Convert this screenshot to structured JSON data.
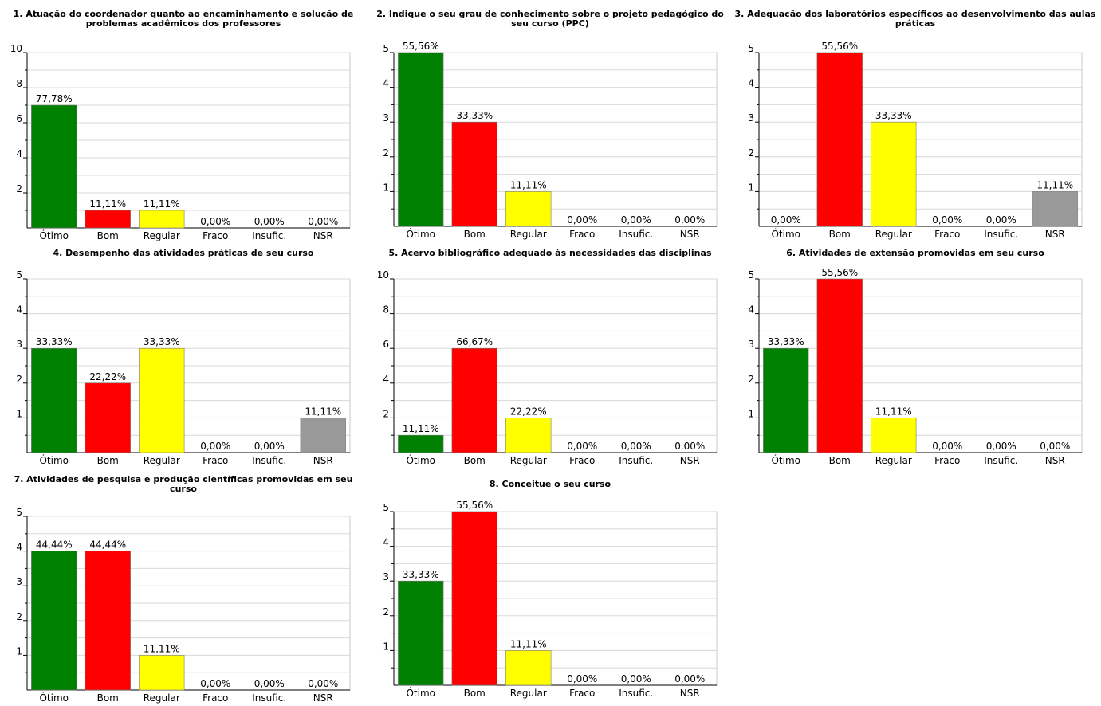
{
  "chart_data": [
    {
      "type": "bar",
      "title": "1. Atuação do coordenador quanto ao encaminhamento e solução de problemas acadêmicos dos professores",
      "categories": [
        "Ótimo",
        "Bom",
        "Regular",
        "Fraco",
        "Insufic.",
        "NSR"
      ],
      "values": [
        7,
        1,
        1,
        0,
        0,
        0
      ],
      "data_labels": [
        "77,78%",
        "11,11%",
        "11,11%",
        "0,00%",
        "0,00%",
        "0,00%"
      ],
      "colors": [
        "#008000",
        "#ff0000",
        "#ffff00",
        "#ffffff",
        "#ffffff",
        "#999999"
      ],
      "ylim": [
        0,
        10
      ],
      "yticks": [
        2,
        4,
        6,
        8,
        10
      ],
      "grid": true
    },
    {
      "type": "bar",
      "title": "2. Indique o seu grau de conhecimento sobre o projeto pedagógico do seu curso (PPC)",
      "categories": [
        "Ótimo",
        "Bom",
        "Regular",
        "Fraco",
        "Insufic.",
        "NSR"
      ],
      "values": [
        5,
        3,
        1,
        0,
        0,
        0
      ],
      "data_labels": [
        "55,56%",
        "33,33%",
        "11,11%",
        "0,00%",
        "0,00%",
        "0,00%"
      ],
      "colors": [
        "#008000",
        "#ff0000",
        "#ffff00",
        "#ffffff",
        "#ffffff",
        "#999999"
      ],
      "ylim": [
        0,
        5
      ],
      "yticks": [
        1,
        2,
        3,
        4,
        5
      ],
      "grid": true
    },
    {
      "type": "bar",
      "title": "3. Adequação dos laboratórios específicos ao desenvolvimento das aulas práticas",
      "categories": [
        "Ótimo",
        "Bom",
        "Regular",
        "Fraco",
        "Insufic.",
        "NSR"
      ],
      "values": [
        0,
        5,
        3,
        0,
        0,
        1
      ],
      "data_labels": [
        "0,00%",
        "55,56%",
        "33,33%",
        "0,00%",
        "0,00%",
        "11,11%"
      ],
      "colors": [
        "#008000",
        "#ff0000",
        "#ffff00",
        "#ffffff",
        "#ffffff",
        "#999999"
      ],
      "ylim": [
        0,
        5
      ],
      "yticks": [
        1,
        2,
        3,
        4,
        5
      ],
      "grid": true
    },
    {
      "type": "bar",
      "title": "4. Desempenho das atividades práticas de seu curso",
      "categories": [
        "Ótimo",
        "Bom",
        "Regular",
        "Fraco",
        "Insufic.",
        "NSR"
      ],
      "values": [
        3,
        2,
        3,
        0,
        0,
        1
      ],
      "data_labels": [
        "33,33%",
        "22,22%",
        "33,33%",
        "0,00%",
        "0,00%",
        "11,11%"
      ],
      "colors": [
        "#008000",
        "#ff0000",
        "#ffff00",
        "#ffffff",
        "#ffffff",
        "#999999"
      ],
      "ylim": [
        0,
        5
      ],
      "yticks": [
        1,
        2,
        3,
        4,
        5
      ],
      "grid": true
    },
    {
      "type": "bar",
      "title": "5. Acervo bibliográfico adequado às necessidades das disciplinas",
      "categories": [
        "Ótimo",
        "Bom",
        "Regular",
        "Fraco",
        "Insufic.",
        "NSR"
      ],
      "values": [
        1,
        6,
        2,
        0,
        0,
        0
      ],
      "data_labels": [
        "11,11%",
        "66,67%",
        "22,22%",
        "0,00%",
        "0,00%",
        "0,00%"
      ],
      "colors": [
        "#008000",
        "#ff0000",
        "#ffff00",
        "#ffffff",
        "#ffffff",
        "#999999"
      ],
      "ylim": [
        0,
        10
      ],
      "yticks": [
        2,
        4,
        6,
        8,
        10
      ],
      "grid": true
    },
    {
      "type": "bar",
      "title": "6. Atividades de extensão promovidas em seu curso",
      "categories": [
        "Ótimo",
        "Bom",
        "Regular",
        "Fraco",
        "Insufic.",
        "NSR"
      ],
      "values": [
        3,
        5,
        1,
        0,
        0,
        0
      ],
      "data_labels": [
        "33,33%",
        "55,56%",
        "11,11%",
        "0,00%",
        "0,00%",
        "0,00%"
      ],
      "colors": [
        "#008000",
        "#ff0000",
        "#ffff00",
        "#ffffff",
        "#ffffff",
        "#999999"
      ],
      "ylim": [
        0,
        5
      ],
      "yticks": [
        1,
        2,
        3,
        4,
        5
      ],
      "grid": true
    },
    {
      "type": "bar",
      "title": "7. Atividades de pesquisa e produção científicas promovidas em seu curso",
      "categories": [
        "Ótimo",
        "Bom",
        "Regular",
        "Fraco",
        "Insufic.",
        "NSR"
      ],
      "values": [
        4,
        4,
        1,
        0,
        0,
        0
      ],
      "data_labels": [
        "44,44%",
        "44,44%",
        "11,11%",
        "0,00%",
        "0,00%",
        "0,00%"
      ],
      "colors": [
        "#008000",
        "#ff0000",
        "#ffff00",
        "#ffffff",
        "#ffffff",
        "#999999"
      ],
      "ylim": [
        0,
        5
      ],
      "yticks": [
        1,
        2,
        3,
        4,
        5
      ],
      "grid": true
    },
    {
      "type": "bar",
      "title": "8. Conceitue o seu curso",
      "categories": [
        "Ótimo",
        "Bom",
        "Regular",
        "Fraco",
        "Insufic.",
        "NSR"
      ],
      "values": [
        3,
        5,
        1,
        0,
        0,
        0
      ],
      "data_labels": [
        "33,33%",
        "55,56%",
        "11,11%",
        "0,00%",
        "0,00%",
        "0,00%"
      ],
      "colors": [
        "#008000",
        "#ff0000",
        "#ffff00",
        "#ffffff",
        "#ffffff",
        "#999999"
      ],
      "ylim": [
        0,
        5
      ],
      "yticks": [
        1,
        2,
        3,
        4,
        5
      ],
      "grid": true
    }
  ]
}
